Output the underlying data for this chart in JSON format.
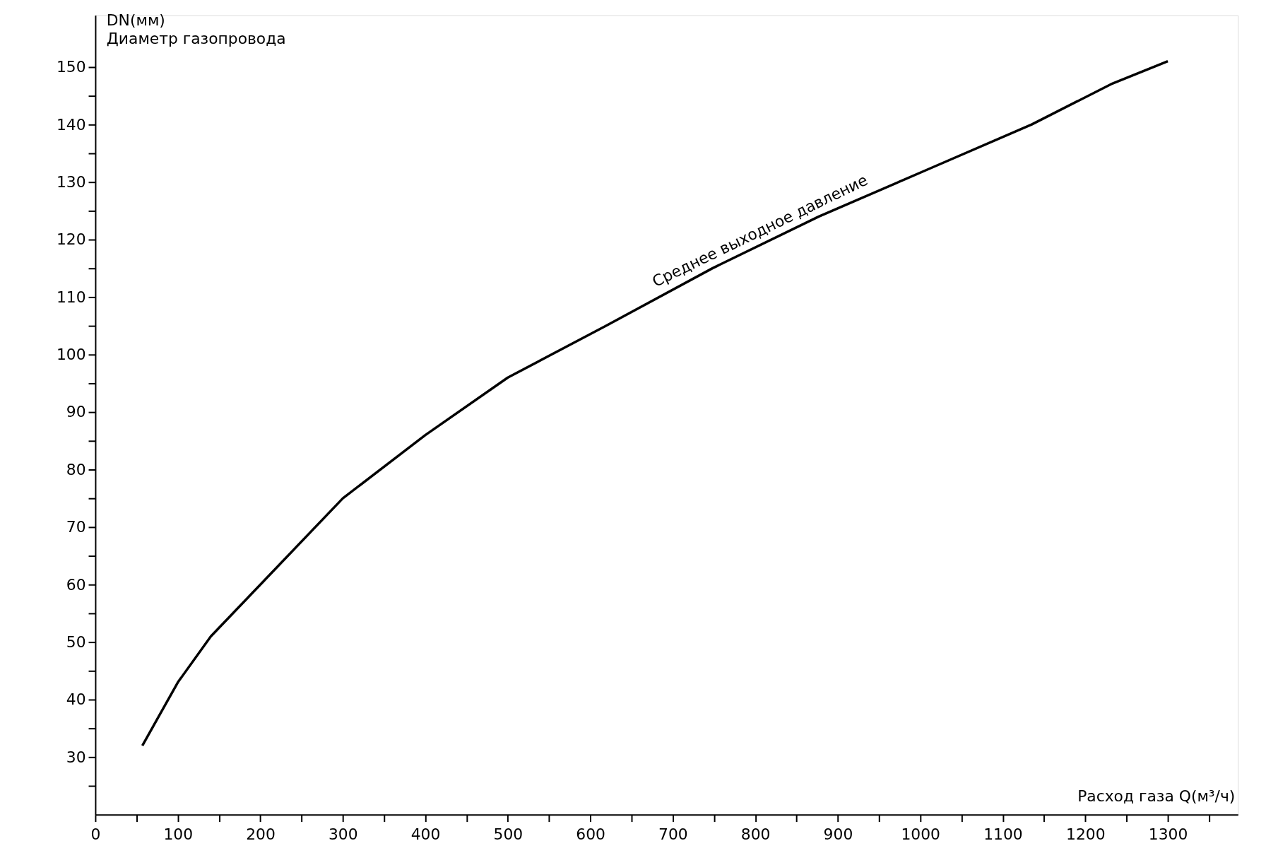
{
  "chart_data": {
    "type": "line",
    "xlabel": "Расход газа Q(м³/ч)",
    "ylabel": "DN(мм)\nДиаметр газопровода",
    "x": [
      57,
      100,
      140,
      200,
      300,
      400,
      500,
      619,
      748,
      877,
      1006,
      1135,
      1231,
      1300
    ],
    "series": [
      {
        "name": "Среднее выходное давление",
        "color": "#000000",
        "values": [
          32,
          43,
          51,
          60,
          75,
          86,
          96,
          105,
          115,
          124,
          132,
          140,
          147,
          151
        ]
      }
    ],
    "xlim": [
      0,
      1385
    ],
    "ylim": [
      20,
      159
    ],
    "xticks": [
      {
        "value": 0,
        "label": "0"
      },
      {
        "value": 50,
        "label": null
      },
      100,
      {
        "value": 150,
        "label": null
      },
      200,
      {
        "value": 250,
        "label": null
      },
      300,
      {
        "value": 350,
        "label": null
      },
      400,
      {
        "value": 450,
        "label": null
      },
      500,
      {
        "value": 550,
        "label": null
      },
      600,
      {
        "value": 650,
        "label": null
      },
      700,
      {
        "value": 750,
        "label": null
      },
      800,
      {
        "value": 850,
        "label": null
      },
      900,
      {
        "value": 950,
        "label": null
      },
      1000,
      {
        "value": 1050,
        "label": null
      },
      1100,
      {
        "value": 1150,
        "label": null
      },
      1200,
      {
        "value": 1250,
        "label": null
      },
      1300,
      {
        "value": 1350,
        "label": null
      }
    ],
    "yticks": [
      {
        "value": 25,
        "label": null
      },
      30,
      {
        "value": 35,
        "label": null
      },
      40,
      {
        "value": 45,
        "label": null
      },
      50,
      {
        "value": 55,
        "label": null
      },
      60,
      {
        "value": 65,
        "label": null
      },
      70,
      {
        "value": 75,
        "label": null
      },
      80,
      {
        "value": 85,
        "label": null
      },
      90,
      {
        "value": 95,
        "label": null
      },
      100,
      {
        "value": 105,
        "label": null
      },
      110,
      {
        "value": 115,
        "label": null
      },
      120,
      {
        "value": 125,
        "label": null
      },
      130,
      {
        "value": 135,
        "label": null
      },
      140,
      {
        "value": 145,
        "label": null
      },
      150
    ],
    "grid": false,
    "legend": false,
    "marker": "none",
    "line_style": "solid"
  }
}
